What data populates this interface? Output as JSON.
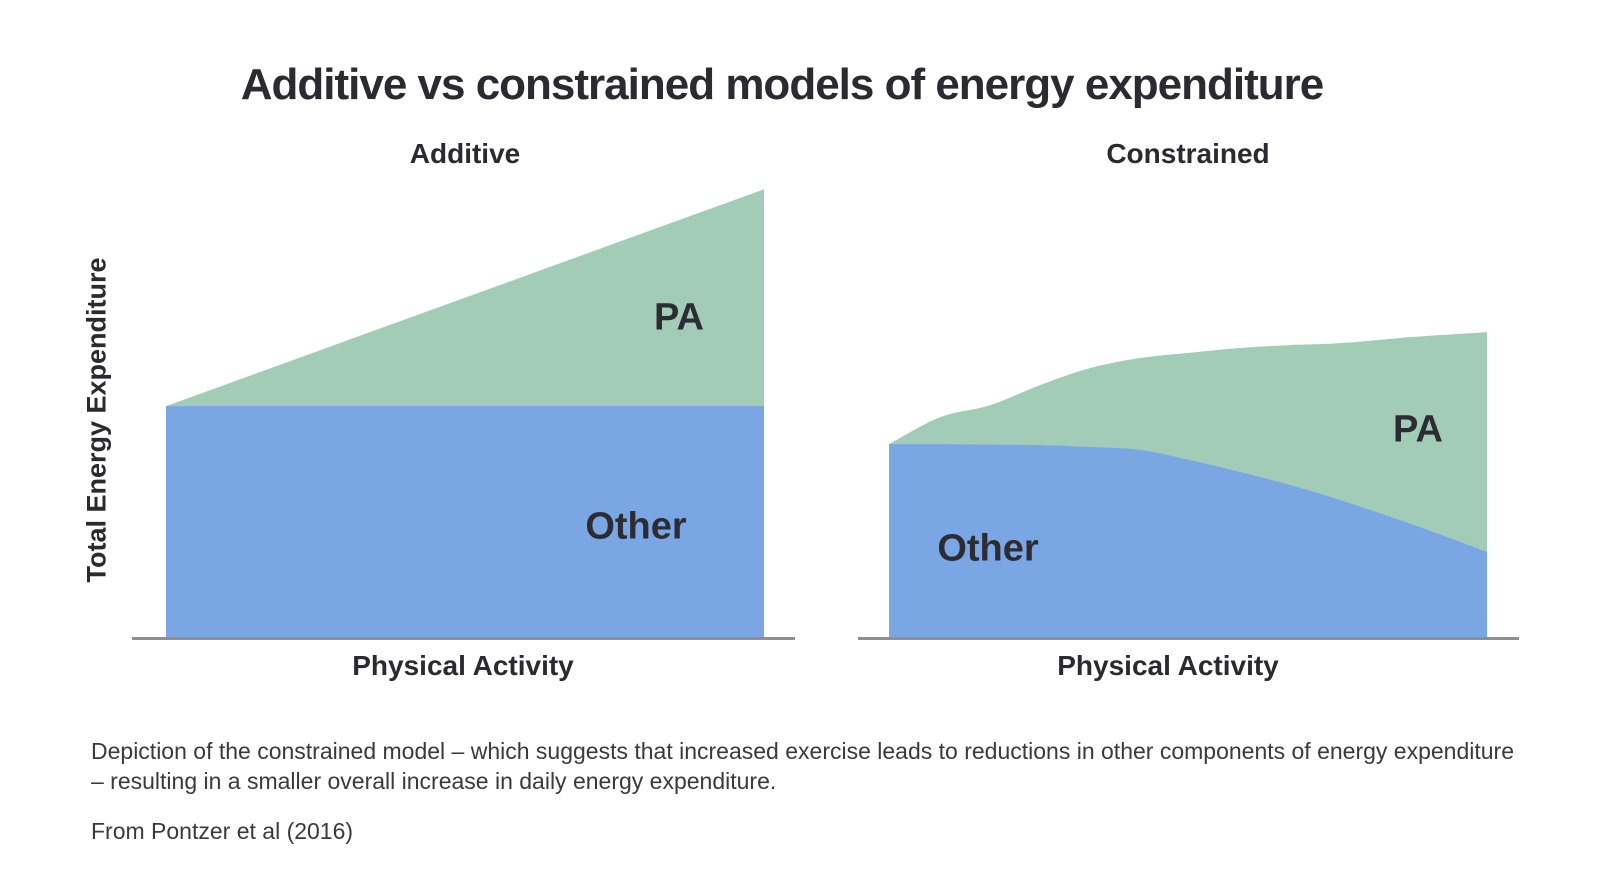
{
  "page": {
    "background": "#ffffff"
  },
  "title": "Additive vs constrained models of energy expenditure",
  "caption": "Depiction of the constrained model – which suggests that increased exercise leads to reductions in other components of energy expenditure – resulting in a smaller overall increase in daily energy expenditure.",
  "source": "From Pontzer et al (2016)",
  "colors": {
    "pa_green": "#a3ccb8",
    "other_blue": "#7aa6e4",
    "axis_gray": "#8f8f8f",
    "heading_text": "#2a2a30",
    "body_text": "#3a3a3a"
  },
  "chart_data": [
    {
      "id": "additive",
      "type": "area",
      "stacked": true,
      "title": "Additive",
      "xlabel": "Physical Activity",
      "ylabel": "Total Energy Expenditure",
      "x": [
        0,
        1
      ],
      "ylim": [
        0,
        100
      ],
      "x_axis_ticks": "none",
      "y_axis_ticks": "none",
      "series": [
        {
          "name": "Other",
          "color": "#7aa6e4",
          "values": [
            48.2,
            48.2
          ]
        },
        {
          "name": "PA",
          "color": "#a3ccb8",
          "values": [
            0,
            45.1
          ]
        }
      ]
    },
    {
      "id": "constrained",
      "type": "area",
      "stacked": true,
      "title": "Constrained",
      "xlabel": "Physical Activity",
      "x": [
        0,
        0.085,
        0.169,
        0.253,
        0.336,
        0.42,
        0.503,
        0.587,
        0.671,
        0.754,
        0.878,
        1
      ],
      "ylim": [
        0,
        100
      ],
      "x_axis_ticks": "none",
      "y_axis_ticks": "none",
      "series": [
        {
          "name": "Other",
          "color": "#7aa6e4",
          "values": [
            40.3,
            40.3,
            40.2,
            40.1,
            39.7,
            39.1,
            37.0,
            34.5,
            31.8,
            28.7,
            23.5,
            17.9
          ]
        },
        {
          "name": "PA",
          "color": "#a3ccb8",
          "values": [
            0,
            5.6,
            8.2,
            12.5,
            16.4,
            19.1,
            22.3,
            25.8,
            29.1,
            32.6,
            39.1,
            45.7
          ]
        }
      ]
    }
  ]
}
